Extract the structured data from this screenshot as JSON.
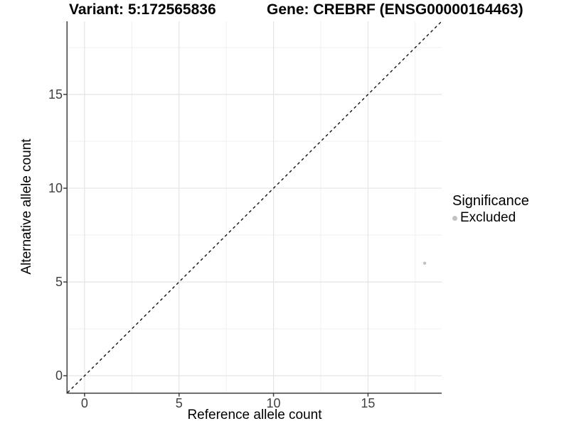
{
  "header": {
    "variant_title": "Variant: 5:172565836",
    "gene_title": "Gene: CREBRF (ENSG00000164463)"
  },
  "axes": {
    "x_label": "Reference allele count",
    "y_label": "Alternative allele count"
  },
  "legend": {
    "title": "Significance",
    "items": [
      {
        "label": "Excluded",
        "color": "#c2c2c2"
      }
    ]
  },
  "colors": {
    "point": "#c2c2c2",
    "grid_major": "#e4e4e4",
    "grid_minor": "#f2f2f2",
    "axis_line": "#3f3f3f",
    "tick_mark": "#3f3f3f",
    "tick_label": "#404040",
    "reference_line": "#111111"
  },
  "chart_data": {
    "type": "scatter",
    "title": "Variant: 5:172565836 | Gene: CREBRF (ENSG00000164463)",
    "xlabel": "Reference allele count",
    "ylabel": "Alternative allele count",
    "xlim": [
      -0.9,
      18.9
    ],
    "ylim": [
      -0.9,
      18.9
    ],
    "x_major_ticks": [
      0,
      5,
      10,
      15
    ],
    "y_major_ticks": [
      0,
      5,
      10,
      15
    ],
    "x_minor_ticks": [
      2.5,
      7.5,
      12.5,
      17.5
    ],
    "y_minor_ticks": [
      2.5,
      7.5,
      12.5,
      17.5
    ],
    "grid": {
      "major": true,
      "minor": true
    },
    "legend_position": "right",
    "series": [
      {
        "name": "Excluded",
        "color": "#c2c2c2",
        "points": [
          {
            "x": 18,
            "y": 6
          }
        ]
      }
    ],
    "reference_line": {
      "slope": 1,
      "intercept": 0,
      "style": "dashed",
      "color": "#111111"
    }
  }
}
